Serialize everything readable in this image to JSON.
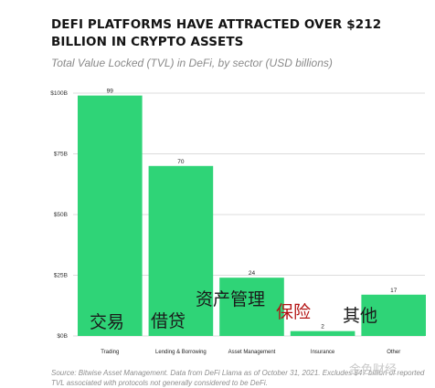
{
  "title": "DEFI PLATFORMS HAVE ATTRACTED OVER $212 BILLION IN CRYPTO ASSETS",
  "subtitle": "Total Value Locked (TVL) in DeFi, by sector (USD billions)",
  "footnote": "Source: Bitwise Asset Management. Data from DeFi Llama as of October 31, 2021. Excludes $47 billion of reported TVL associated with protocols not generally considered to be DeFi.",
  "watermark": "金色财经",
  "colors": {
    "bar": "#2fd477",
    "grid": "#dcdcdc",
    "overlay_text": "#b31212",
    "chinese_text": "#1a1a1a"
  },
  "chart_data": {
    "type": "bar",
    "categories": [
      "Trading",
      "Lending & Borrowing",
      "Asset Management",
      "Insurance",
      "Other"
    ],
    "values": [
      99,
      70,
      24,
      2,
      17
    ],
    "value_labels": [
      "99",
      "70",
      "24",
      "2",
      "17"
    ],
    "yticks": [
      0,
      25,
      50,
      75,
      100
    ],
    "ytick_labels": [
      "$0B",
      "$25B",
      "$50B",
      "$75B",
      "$100B"
    ],
    "ylim": [
      0,
      100
    ],
    "grid": true,
    "title": "DEFI PLATFORMS HAVE ATTRACTED OVER $212 BILLION IN CRYPTO ASSETS",
    "subtitle": "Total Value Locked (TVL) in DeFi, by sector (USD billions)",
    "annotations": [
      "交易",
      "借贷",
      "资产管理",
      "保险",
      "其他"
    ]
  }
}
